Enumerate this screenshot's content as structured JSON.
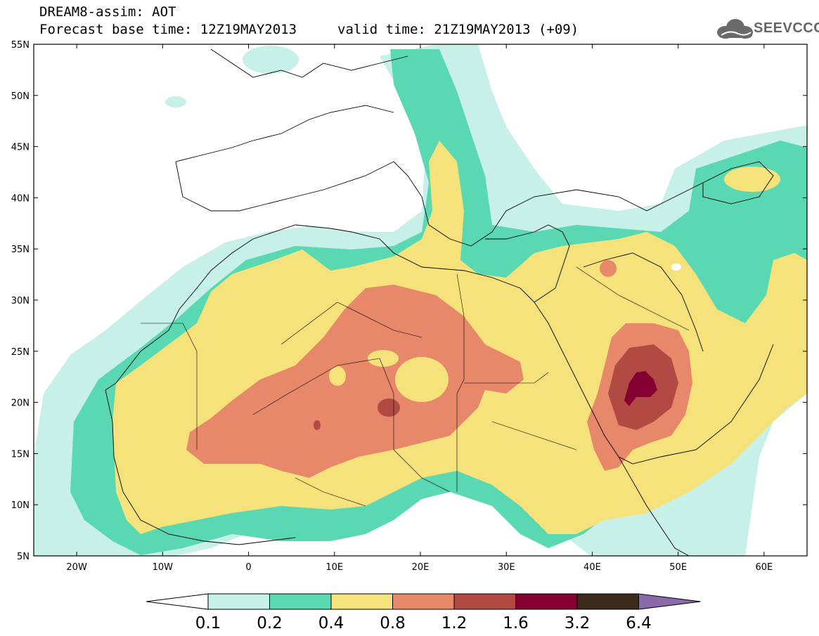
{
  "header": {
    "title": "DREAM8-assim: AOT",
    "base_time": "Forecast base time: 12Z19MAY2013",
    "valid_time": "valid time: 21Z19MAY2013 (+09)"
  },
  "logo": {
    "text": "SEEVCCC",
    "icon": "cloud-icon"
  },
  "map": {
    "lon_range": [
      -25,
      65
    ],
    "lat_range": [
      5,
      55
    ],
    "lat_labels": [
      "55N",
      "50N",
      "45N",
      "40N",
      "35N",
      "30N",
      "25N",
      "20N",
      "15N",
      "10N",
      "5N"
    ],
    "lon_labels": [
      "20W",
      "10W",
      "0",
      "10E",
      "20E",
      "30E",
      "40E",
      "50E",
      "60E"
    ]
  },
  "colorbar": {
    "labels": [
      "0.1",
      "0.2",
      "0.4",
      "0.8",
      "1.2",
      "1.6",
      "3.2",
      "6.4"
    ],
    "colors": [
      "#c6f0e8",
      "#5ad8b2",
      "#f5e27a",
      "#e8886a",
      "#b24a44",
      "#840030",
      "#3c2a1a",
      "#8a6aa8"
    ]
  }
}
